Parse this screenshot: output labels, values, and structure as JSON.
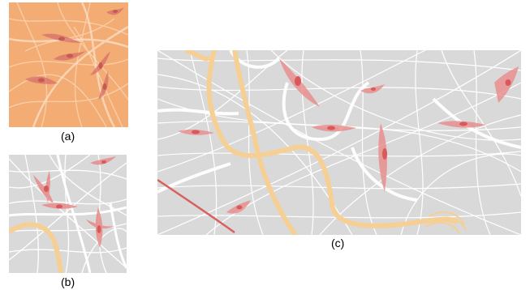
{
  "figure": {
    "captions": {
      "a": "(a)",
      "b": "(b)",
      "c": "(c)"
    },
    "colors": {
      "panel_a_background": "#f0a56c",
      "panel_background": "#d9d9d9",
      "fiber": "#ffffff",
      "cell": "#e88a88",
      "nucleus": "#d9585a",
      "thick_fiber": "#f6cf95",
      "dark_fiber": "#d9605e"
    }
  }
}
